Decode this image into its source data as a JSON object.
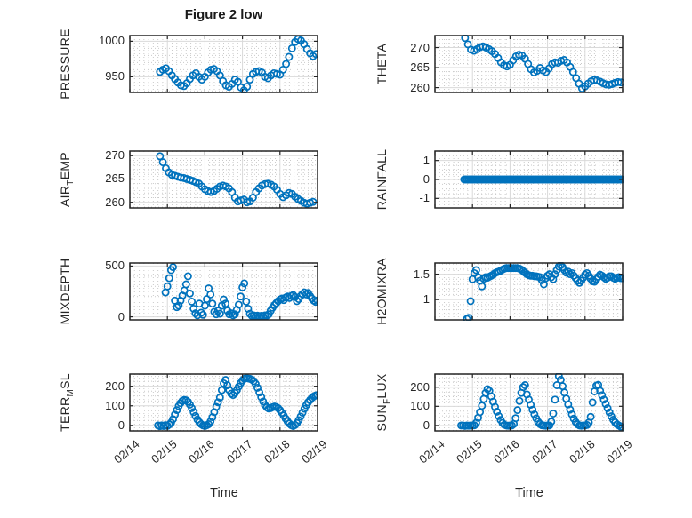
{
  "figure": {
    "title": "Figure 2 low",
    "marker_color": "#0072BD",
    "axis_color": "#252525",
    "grid_color": "#d9d9d9",
    "minor_grid_color": "#c9c9c9",
    "background": "#ffffff"
  },
  "x_axis": {
    "label": "Time",
    "lim": [
      14,
      19
    ],
    "minor_step": 0.125,
    "ticks": [
      {
        "v": 14,
        "label": "02/14"
      },
      {
        "v": 15,
        "label": "02/15"
      },
      {
        "v": 16,
        "label": "02/16"
      },
      {
        "v": 17,
        "label": "02/17"
      },
      {
        "v": 18,
        "label": "02/18"
      },
      {
        "v": 19,
        "label": "02/19"
      }
    ]
  },
  "chart_data": [
    {
      "name": "pressure",
      "type": "scatter",
      "title": "Figure 2 low",
      "grid": {
        "row": 0,
        "col": 0
      },
      "ylabel_segments": [
        {
          "text": "PRESSURE",
          "sub": false
        }
      ],
      "ylim": [
        928,
        1008
      ],
      "y_minor_step": 10,
      "yticks": [
        {
          "v": 950,
          "label": "950"
        },
        {
          "v": 1000,
          "label": "1000"
        }
      ],
      "show_xticklabels": false,
      "series": {
        "t_start": 14.8,
        "t_step": 0.08,
        "y": [
          957,
          960,
          962,
          958,
          952,
          947,
          942,
          938,
          937,
          941,
          947,
          952,
          955,
          950,
          946,
          950,
          956,
          960,
          961,
          958,
          952,
          944,
          938,
          936,
          940,
          946,
          943,
          935,
          931,
          936,
          946,
          954,
          957,
          958,
          956,
          950,
          948,
          952,
          955,
          954,
          953,
          960,
          968,
          978,
          990,
          999,
          1003,
          1001,
          996,
          989,
          983,
          979,
          982
        ]
      }
    },
    {
      "name": "theta",
      "type": "scatter",
      "grid": {
        "row": 0,
        "col": 1
      },
      "ylabel_segments": [
        {
          "text": "THETA",
          "sub": false
        }
      ],
      "ylim": [
        258.8,
        273.0
      ],
      "y_minor_step": 1,
      "yticks": [
        {
          "v": 260,
          "label": "260"
        },
        {
          "v": 265,
          "label": "265"
        },
        {
          "v": 270,
          "label": "270"
        }
      ],
      "show_xticklabels": false,
      "series": {
        "t_start": 14.8,
        "t_step": 0.08,
        "y": [
          272.4,
          270.8,
          269.5,
          269.2,
          269.6,
          270.1,
          270.3,
          270.0,
          269.6,
          269.1,
          268.4,
          267.4,
          266.3,
          265.6,
          265.3,
          265.7,
          266.8,
          267.8,
          268.2,
          268.0,
          267.2,
          265.9,
          264.6,
          263.8,
          264.2,
          264.9,
          264.3,
          263.9,
          264.8,
          265.9,
          266.3,
          266.2,
          266.7,
          266.9,
          266.3,
          265.2,
          263.9,
          262.4,
          261.0,
          259.8,
          260.3,
          261.0,
          261.6,
          261.9,
          261.8,
          261.5,
          261.1,
          260.8,
          260.7,
          260.9,
          261.2,
          261.4,
          261.3
        ]
      }
    },
    {
      "name": "air-temp",
      "type": "scatter",
      "grid": {
        "row": 1,
        "col": 0
      },
      "ylabel_segments": [
        {
          "text": "AIR",
          "sub": false
        },
        {
          "text": "T",
          "sub": true
        },
        {
          "text": "EMP",
          "sub": false
        }
      ],
      "ylim": [
        258.8,
        271.0
      ],
      "y_minor_step": 1,
      "yticks": [
        {
          "v": 260,
          "label": "260"
        },
        {
          "v": 265,
          "label": "265"
        },
        {
          "v": 270,
          "label": "270"
        }
      ],
      "show_xticklabels": false,
      "series": {
        "t_start": 14.8,
        "t_step": 0.08,
        "y": [
          269.9,
          268.6,
          267.3,
          266.4,
          265.9,
          265.7,
          265.5,
          265.3,
          265.2,
          265.0,
          264.8,
          264.6,
          264.3,
          264.0,
          263.4,
          262.8,
          262.4,
          262.2,
          262.4,
          262.9,
          263.4,
          263.6,
          263.4,
          263.0,
          262.2,
          261.0,
          260.2,
          260.4,
          260.6,
          260.0,
          260.2,
          261.0,
          262.2,
          263.0,
          263.6,
          263.9,
          264.0,
          263.8,
          263.4,
          262.7,
          261.8,
          261.1,
          261.5,
          262.0,
          261.8,
          261.2,
          260.7,
          260.3,
          259.9,
          259.7,
          259.9,
          260.1
        ]
      }
    },
    {
      "name": "rainfall",
      "type": "scatter",
      "grid": {
        "row": 1,
        "col": 1
      },
      "ylabel_segments": [
        {
          "text": "RAINFALL",
          "sub": false
        }
      ],
      "ylim": [
        -1.5,
        1.5
      ],
      "y_minor_step": 0.25,
      "yticks": [
        {
          "v": -1,
          "label": "-1"
        },
        {
          "v": 0,
          "label": "0"
        },
        {
          "v": 1,
          "label": "1"
        }
      ],
      "show_xticklabels": false,
      "series": {
        "t_start": 14.78,
        "t_step": 0.04,
        "n": 106,
        "y_const": 0
      }
    },
    {
      "name": "mixdepth",
      "type": "scatter",
      "grid": {
        "row": 2,
        "col": 0
      },
      "ylabel_segments": [
        {
          "text": "MIXDEPTH",
          "sub": false
        }
      ],
      "ylim": [
        -30,
        530
      ],
      "y_minor_step": 100,
      "yticks": [
        {
          "v": 0,
          "label": "0"
        },
        {
          "v": 500,
          "label": "500"
        }
      ],
      "show_xticklabels": false,
      "series": {
        "t_start": 14.95,
        "t_step": 0.05,
        "y": [
          240,
          300,
          380,
          460,
          490,
          160,
          95,
          110,
          160,
          210,
          260,
          320,
          400,
          230,
          150,
          80,
          35,
          15,
          130,
          40,
          20,
          110,
          175,
          280,
          220,
          130,
          50,
          25,
          60,
          30,
          110,
          170,
          130,
          60,
          25,
          35,
          15,
          25,
          70,
          120,
          200,
          290,
          330,
          150,
          80,
          30,
          10,
          15,
          8,
          12,
          6,
          10,
          8,
          15,
          12,
          25,
          60,
          90,
          115,
          135,
          155,
          170,
          180,
          165,
          190,
          200,
          185,
          205,
          215,
          195,
          155,
          175,
          205,
          225,
          240,
          220,
          235,
          205,
          180,
          160,
          148,
          162
        ]
      }
    },
    {
      "name": "h2omixra",
      "type": "scatter",
      "grid": {
        "row": 2,
        "col": 1
      },
      "ylabel_segments": [
        {
          "text": "H2OMIXRA",
          "sub": false
        }
      ],
      "ylim": [
        0.6,
        1.72
      ],
      "y_minor_step": 0.1,
      "yticks": [
        {
          "v": 1,
          "label": "1"
        },
        {
          "v": 1.5,
          "label": "1.5"
        }
      ],
      "show_xticklabels": false,
      "series": {
        "t_start": 14.85,
        "t_step": 0.05,
        "y": [
          0.62,
          0.64,
          0.97,
          1.4,
          1.52,
          1.58,
          1.44,
          1.37,
          1.26,
          1.41,
          1.44,
          1.43,
          1.45,
          1.47,
          1.49,
          1.52,
          1.54,
          1.55,
          1.57,
          1.59,
          1.61,
          1.62,
          1.62,
          1.62,
          1.62,
          1.62,
          1.62,
          1.62,
          1.61,
          1.59,
          1.56,
          1.53,
          1.5,
          1.48,
          1.47,
          1.47,
          1.46,
          1.46,
          1.45,
          1.44,
          1.38,
          1.3,
          1.42,
          1.47,
          1.5,
          1.44,
          1.4,
          1.5,
          1.58,
          1.65,
          1.68,
          1.64,
          1.58,
          1.53,
          1.55,
          1.5,
          1.52,
          1.47,
          1.42,
          1.37,
          1.33,
          1.37,
          1.43,
          1.49,
          1.52,
          1.47,
          1.41,
          1.36,
          1.35,
          1.4,
          1.45,
          1.49,
          1.47,
          1.44,
          1.41,
          1.43,
          1.46,
          1.46,
          1.43,
          1.41,
          1.43,
          1.44,
          1.42,
          1.42
        ]
      }
    },
    {
      "name": "terr-msl",
      "type": "scatter",
      "grid": {
        "row": 3,
        "col": 0
      },
      "ylabel_segments": [
        {
          "text": "TERR",
          "sub": false
        },
        {
          "text": "M",
          "sub": true
        },
        {
          "text": "SL",
          "sub": false
        }
      ],
      "ylim": [
        -28,
        262
      ],
      "y_minor_step": 25,
      "yticks": [
        {
          "v": 0,
          "label": "0"
        },
        {
          "v": 100,
          "label": "100"
        },
        {
          "v": 200,
          "label": "200"
        }
      ],
      "show_xticklabels": true,
      "xlabel": "Time",
      "series": {
        "t_start": 14.75,
        "t_step": 0.05,
        "y": [
          0,
          -4,
          0,
          -3,
          1,
          -2,
          4,
          14,
          32,
          55,
          78,
          98,
          114,
          125,
          130,
          128,
          120,
          106,
          88,
          68,
          48,
          30,
          16,
          6,
          0,
          -3,
          1,
          6,
          20,
          42,
          68,
          95,
          118,
          142,
          180,
          215,
          232,
          205,
          180,
          162,
          155,
          165,
          180,
          198,
          216,
          230,
          238,
          241,
          240,
          238,
          234,
          226,
          212,
          192,
          168,
          144,
          122,
          104,
          92,
          86,
          88,
          93,
          96,
          94,
          88,
          78,
          65,
          50,
          35,
          21,
          9,
          1,
          -3,
          2,
          12,
          27,
          45,
          65,
          85,
          103,
          118,
          130,
          140,
          148,
          153,
          155
        ]
      }
    },
    {
      "name": "sun-flux",
      "type": "scatter",
      "grid": {
        "row": 3,
        "col": 1
      },
      "ylabel_segments": [
        {
          "text": "SUN",
          "sub": false
        },
        {
          "text": "F",
          "sub": true
        },
        {
          "text": "LUX",
          "sub": false
        }
      ],
      "ylim": [
        -28,
        268
      ],
      "y_minor_step": 25,
      "yticks": [
        {
          "v": 0,
          "label": "0"
        },
        {
          "v": 100,
          "label": "100"
        },
        {
          "v": 200,
          "label": "200"
        }
      ],
      "show_xticklabels": true,
      "xlabel": "Time",
      "series": {
        "t_start": 14.7,
        "t_step": 0.05,
        "y": [
          0,
          0,
          -2,
          0,
          -1,
          0,
          0,
          1,
          14,
          40,
          70,
          103,
          138,
          170,
          190,
          180,
          152,
          124,
          97,
          72,
          49,
          29,
          13,
          4,
          0,
          -1,
          0,
          0,
          8,
          38,
          80,
          128,
          170,
          200,
          210,
          162,
          135,
          108,
          82,
          58,
          37,
          19,
          7,
          1,
          0,
          -1,
          0,
          0,
          20,
          62,
          135,
          210,
          258,
          238,
          205,
          172,
          140,
          110,
          83,
          58,
          36,
          18,
          6,
          0,
          -1,
          0,
          0,
          3,
          15,
          45,
          120,
          178,
          208,
          212,
          180,
          158,
          135,
          112,
          90,
          68,
          48,
          30,
          16,
          6,
          0,
          -6,
          -10
        ]
      }
    }
  ]
}
